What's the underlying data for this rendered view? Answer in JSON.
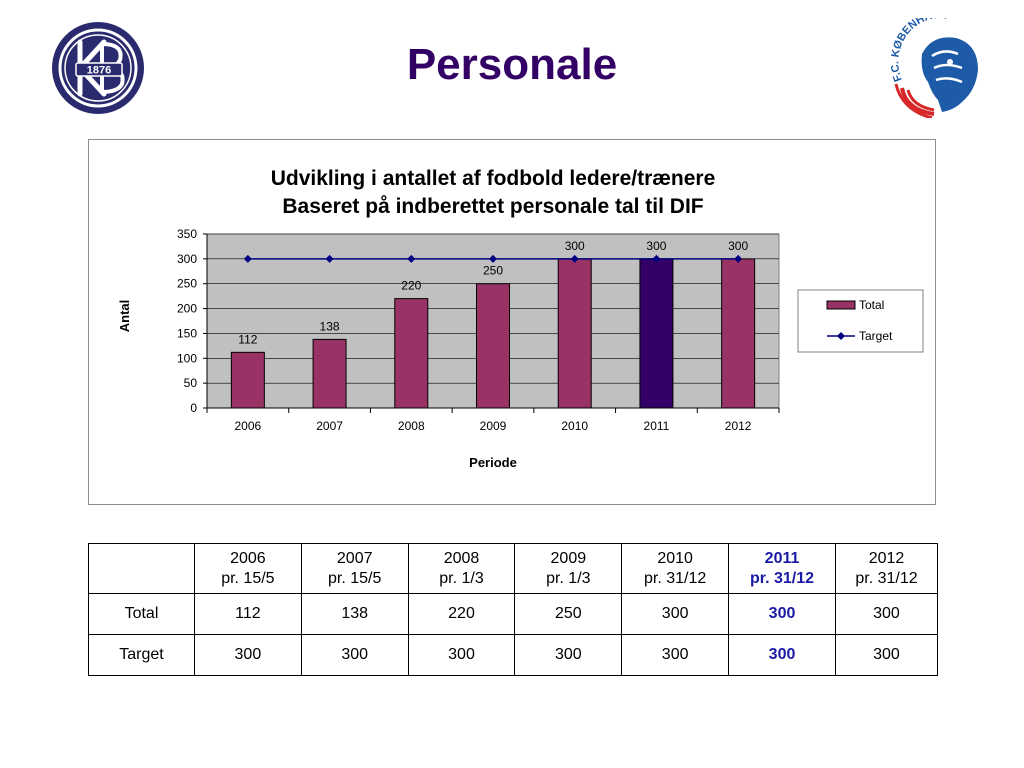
{
  "page_title": "Personale",
  "logo_left": {
    "year": "1876",
    "letters": "KB"
  },
  "logo_right": {
    "text": "F.C. KØBENHAVN"
  },
  "colors": {
    "title": "#330066",
    "bar": "#993366",
    "bar_highlight": "#330066",
    "target_line": "#000080",
    "plot_bg": "#c0c0c0",
    "table_highlight": "#1a1aa6"
  },
  "chart_data": {
    "type": "bar",
    "title": [
      "Udvikling i antallet af fodbold ledere/trænere",
      "Baseret på indberettet personale tal til DIF"
    ],
    "xlabel": "Periode",
    "ylabel": "Antal",
    "ylim": [
      0,
      350
    ],
    "yticks": [
      0,
      50,
      100,
      150,
      200,
      250,
      300,
      350
    ],
    "categories": [
      "2006",
      "2007",
      "2008",
      "2009",
      "2010",
      "2011",
      "2012"
    ],
    "series": [
      {
        "name": "Total",
        "kind": "bar",
        "values": [
          112,
          138,
          220,
          250,
          300,
          300,
          300
        ],
        "highlight_index": 5
      },
      {
        "name": "Target",
        "kind": "line",
        "values": [
          300,
          300,
          300,
          300,
          300,
          300,
          300
        ]
      }
    ],
    "grid": "horizontal",
    "legend_position": "right"
  },
  "table": {
    "headers": [
      {
        "year": "2006",
        "date": "pr. 15/5",
        "highlight": false
      },
      {
        "year": "2007",
        "date": "pr. 15/5",
        "highlight": false
      },
      {
        "year": "2008",
        "date": "pr. 1/3",
        "highlight": false
      },
      {
        "year": "2009",
        "date": "pr. 1/3",
        "highlight": false
      },
      {
        "year": "2010",
        "date": "pr. 31/12",
        "highlight": false
      },
      {
        "year": "2011",
        "date": "pr. 31/12",
        "highlight": true
      },
      {
        "year": "2012",
        "date": "pr. 31/12",
        "highlight": false
      }
    ],
    "rows": [
      {
        "label": "Total",
        "values": [
          "112",
          "138",
          "220",
          "250",
          "300",
          "300",
          "300"
        ]
      },
      {
        "label": "Target",
        "values": [
          "300",
          "300",
          "300",
          "300",
          "300",
          "300",
          "300"
        ]
      }
    ],
    "highlight_col": 5
  }
}
